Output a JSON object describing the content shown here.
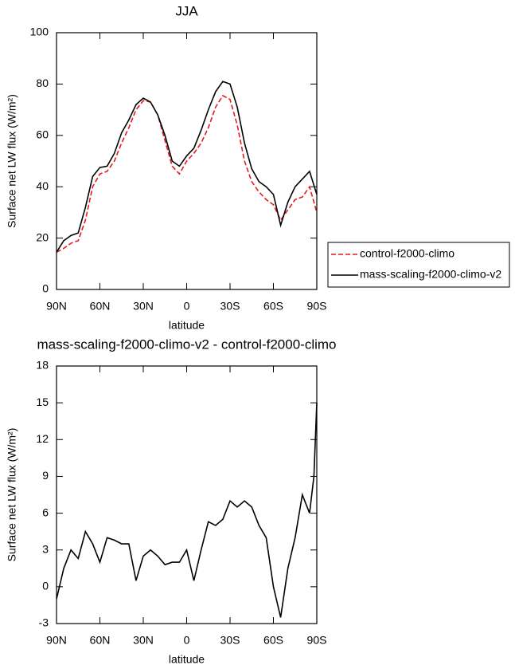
{
  "chart_data": [
    {
      "type": "line",
      "title": "JJA",
      "xlabel": "latitude",
      "ylabel": "Surface net LW flux (W/m²)",
      "x": [
        90,
        85,
        80,
        75,
        70,
        65,
        60,
        55,
        50,
        45,
        40,
        35,
        30,
        25,
        20,
        15,
        10,
        5,
        0,
        -5,
        -10,
        -15,
        -20,
        -25,
        -30,
        -35,
        -40,
        -45,
        -50,
        -55,
        -60,
        -65,
        -70,
        -75,
        -80,
        -85,
        -90
      ],
      "xlim": [
        90,
        -90
      ],
      "xticks": [
        {
          "value": 90,
          "label": "90N"
        },
        {
          "value": 60,
          "label": "60N"
        },
        {
          "value": 30,
          "label": "30N"
        },
        0,
        {
          "value": -30,
          "label": "30S"
        },
        {
          "value": -60,
          "label": "60S"
        },
        {
          "value": -90,
          "label": "90S"
        }
      ],
      "ylim": [
        0,
        100
      ],
      "yticks": [
        0,
        20,
        40,
        60,
        80,
        100
      ],
      "legend": "right",
      "series": [
        {
          "name": "control-f2000-climo",
          "color": "#e41a1c",
          "dash": true,
          "values": [
            14.5,
            16,
            18,
            19,
            27,
            40,
            45,
            46,
            50,
            57,
            63,
            70,
            73.5,
            73,
            68,
            58,
            48,
            45,
            50,
            53,
            57,
            63,
            71,
            75.5,
            74,
            64,
            50,
            42,
            38,
            35,
            33,
            27,
            31,
            35,
            36,
            40,
            30
          ]
        },
        {
          "name": "mass-scaling-f2000-climo-v2",
          "color": "#000000",
          "dash": false,
          "values": [
            14.5,
            19,
            21,
            22,
            32,
            44,
            47.5,
            48,
            53,
            61,
            66,
            72,
            74.5,
            73,
            68,
            60,
            50,
            48,
            52,
            55,
            62,
            70,
            77,
            81,
            80,
            71,
            57,
            47,
            42,
            40,
            37,
            25,
            34,
            40,
            43,
            46,
            37
          ]
        }
      ]
    },
    {
      "type": "line",
      "title": "mass-scaling-f2000-climo-v2 - control-f2000-climo",
      "xlabel": "latitude",
      "ylabel": "Surface net LW flux (W/m²)",
      "x": [
        90,
        85,
        80,
        75,
        70,
        65,
        60,
        55,
        50,
        45,
        40,
        35,
        30,
        25,
        20,
        15,
        10,
        5,
        0,
        -5,
        -10,
        -15,
        -20,
        -25,
        -30,
        -35,
        -40,
        -45,
        -50,
        -55,
        -60,
        -65,
        -70,
        -75,
        -80,
        -85,
        -88,
        -90
      ],
      "xlim": [
        90,
        -90
      ],
      "xticks": [
        {
          "value": 90,
          "label": "90N"
        },
        {
          "value": 60,
          "label": "60N"
        },
        {
          "value": 30,
          "label": "30N"
        },
        0,
        {
          "value": -30,
          "label": "30S"
        },
        {
          "value": -60,
          "label": "60S"
        },
        {
          "value": -90,
          "label": "90S"
        }
      ],
      "ylim": [
        -3,
        18
      ],
      "yticks": [
        -3,
        0,
        3,
        6,
        9,
        12,
        15,
        18
      ],
      "series": [
        {
          "color": "#000000",
          "dash": false,
          "values": [
            -1,
            1.5,
            3,
            2.3,
            4.5,
            3.5,
            2,
            4,
            3.8,
            3.5,
            3.5,
            0.5,
            2.5,
            3,
            2.5,
            1.8,
            2,
            2,
            3,
            0.5,
            3,
            5.3,
            5,
            5.5,
            7,
            6.5,
            7,
            6.5,
            5,
            4,
            0,
            -2.5,
            1.5,
            4,
            7.5,
            6,
            9,
            15
          ]
        }
      ]
    }
  ]
}
